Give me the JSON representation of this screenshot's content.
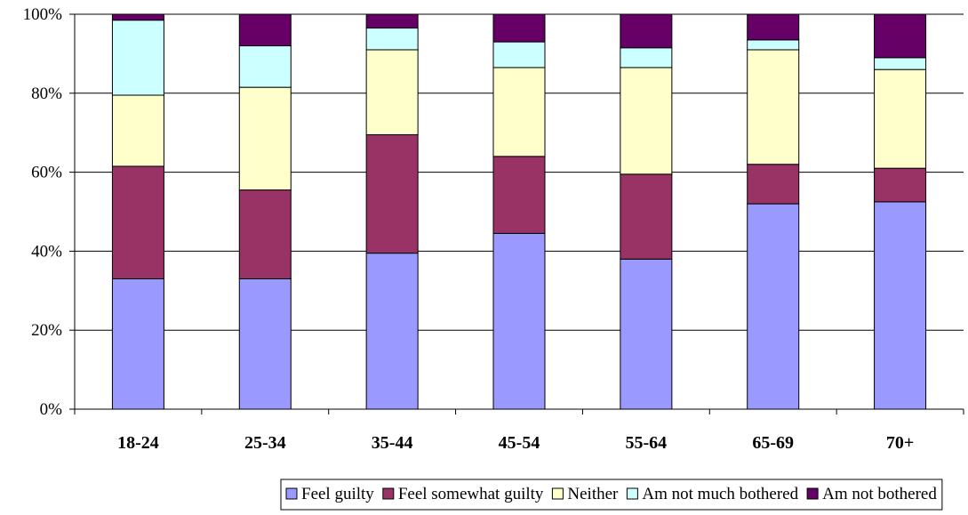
{
  "chart_data": {
    "type": "bar",
    "stacked": true,
    "normalized": true,
    "categories": [
      "18-24",
      "25-34",
      "35-44",
      "45-54",
      "55-64",
      "65-69",
      "70+"
    ],
    "series": [
      {
        "name": "Feel guilty",
        "color": "#9999FF",
        "values": [
          33,
          33,
          39.5,
          44.5,
          38,
          52,
          52.5
        ]
      },
      {
        "name": "Feel somewhat guilty",
        "color": "#993366",
        "values": [
          28.5,
          22.5,
          30,
          19.5,
          21.5,
          10,
          8.5
        ]
      },
      {
        "name": "Neither",
        "color": "#FFFFCC",
        "values": [
          18,
          26,
          21.5,
          22.5,
          27,
          29,
          25
        ]
      },
      {
        "name": "Am not much bothered",
        "color": "#CCFFFF",
        "values": [
          19,
          10.5,
          5.5,
          6.5,
          5,
          2.5,
          3
        ]
      },
      {
        "name": "Am not bothered",
        "color": "#660066",
        "values": [
          1.5,
          8,
          3.5,
          7,
          8.5,
          6.5,
          11
        ]
      }
    ],
    "yticks": [
      "0%",
      "20%",
      "40%",
      "60%",
      "80%",
      "100%"
    ],
    "ylim": [
      0,
      100
    ],
    "grid": true,
    "legend": "bottom"
  }
}
